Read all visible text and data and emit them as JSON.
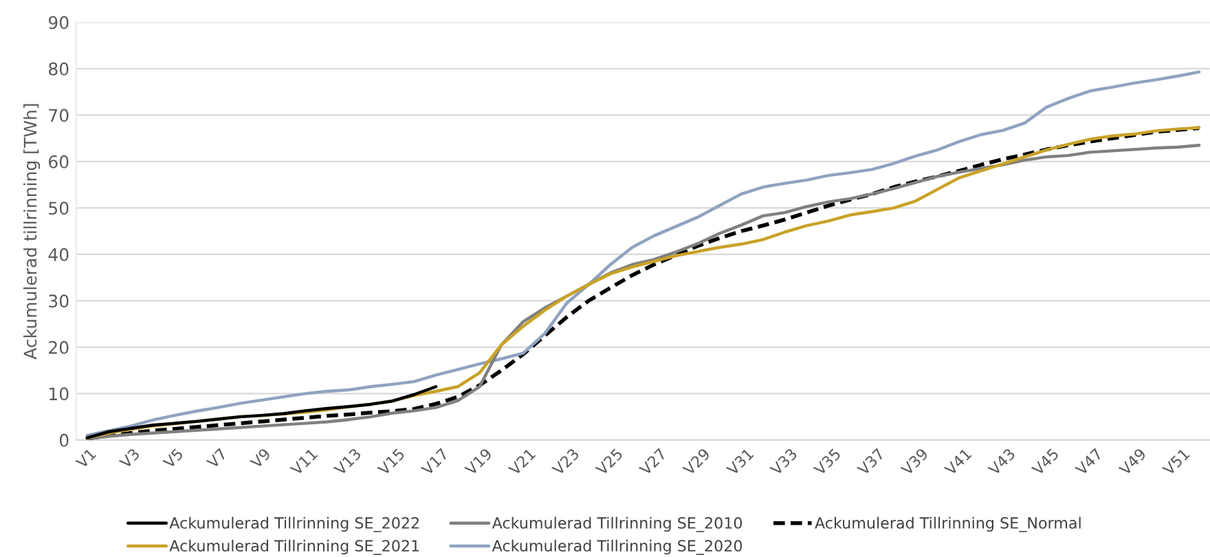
{
  "chart_data": {
    "type": "line",
    "ylabel": "Ackumulerad tillrinning [TWh]",
    "categories": [
      "V1",
      null,
      "V3",
      null,
      "V5",
      null,
      "V7",
      null,
      "V9",
      null,
      "V11",
      null,
      "V13",
      null,
      "V15",
      null,
      "V17",
      null,
      "V19",
      null,
      "V21",
      null,
      "V23",
      null,
      "V25",
      null,
      "V27",
      null,
      "V29",
      null,
      "V31",
      null,
      "V33",
      null,
      "V35",
      null,
      "V37",
      null,
      "V39",
      null,
      "V41",
      null,
      "V43",
      null,
      "V45",
      null,
      "V47",
      null,
      "V49",
      null,
      "V51",
      null
    ],
    "ylim": [
      0,
      90
    ],
    "yticks": [
      0,
      10,
      20,
      30,
      40,
      50,
      60,
      70,
      80,
      90
    ],
    "grid": "y",
    "legend": "bottom",
    "series": [
      {
        "name": "Ackumulerad Tillrinning SE_2022",
        "color": "#000000",
        "values": [
          0.5,
          1.8,
          2.5,
          3.2,
          3.6,
          4,
          4.5,
          5,
          5.3,
          5.7,
          6.3,
          6.8,
          7.2,
          7.7,
          8.4,
          9.8,
          11.5,
          null,
          null,
          null,
          null,
          null,
          null,
          null,
          null,
          null,
          null,
          null,
          null,
          null,
          null,
          null,
          null,
          null,
          null,
          null,
          null,
          null,
          null,
          null,
          null,
          null,
          null,
          null,
          null,
          null,
          null,
          null,
          null,
          null,
          null,
          null
        ]
      },
      {
        "name": "Ackumulerad Tillrinning SE_2021",
        "color": "#c9a227",
        "values": [
          0.5,
          1.5,
          2.3,
          3,
          3.5,
          4,
          4.5,
          5,
          5.3,
          5.6,
          6,
          6.5,
          7.2,
          7.7,
          8.4,
          9.6,
          10.5,
          11.5,
          14.5,
          20.5,
          24.5,
          28,
          31,
          33.5,
          35.8,
          37.3,
          38.5,
          39.7,
          40.6,
          41.5,
          42.2,
          43.2,
          44.8,
          46.2,
          47.2,
          48.5,
          49.2,
          50,
          51.5,
          54,
          56.5,
          58,
          59.5,
          61,
          62.5,
          63.7,
          64.8,
          65.5,
          65.9,
          66.6,
          67,
          67.3
        ]
      },
      {
        "name": "Ackumulerad Tillrinning SE_2010",
        "color": "#808080",
        "values": [
          0.3,
          0.8,
          1.2,
          1.5,
          1.8,
          2.1,
          2.4,
          2.7,
          3,
          3.3,
          3.6,
          3.9,
          4.4,
          5,
          5.8,
          6.3,
          7,
          8.5,
          11.5,
          20.5,
          25.5,
          28.5,
          31,
          33.5,
          36,
          37.8,
          38.9,
          40.5,
          42.3,
          44.5,
          46.3,
          48.3,
          49,
          50.3,
          51.3,
          52,
          53,
          54.2,
          55.5,
          56.8,
          57.7,
          58.5,
          59.3,
          60.3,
          61,
          61.3,
          62,
          62.3,
          62.6,
          62.9,
          63.1,
          63.5
        ]
      },
      {
        "name": "Ackumulerad Tillrinning SE_2020",
        "color": "#8fa3c0",
        "values": [
          1,
          2,
          3,
          4.3,
          5.3,
          6.2,
          7,
          7.9,
          8.6,
          9.3,
          10,
          10.5,
          10.8,
          11.5,
          12,
          12.6,
          14,
          15.2,
          16.4,
          17.5,
          18.7,
          23,
          29.5,
          33.5,
          37.8,
          41.5,
          44,
          46,
          48,
          50.5,
          53,
          54.5,
          55.3,
          56,
          57,
          57.6,
          58.3,
          59.6,
          61.2,
          62.5,
          64.3,
          65.8,
          66.7,
          68.3,
          71.7,
          73.6,
          75.2,
          76,
          76.9,
          77.6,
          78.4,
          79.3
        ]
      },
      {
        "name": "Ackumulerad Tillrinning SE_Normal",
        "color": "#000000",
        "line_style": "dashed",
        "values": [
          0.3,
          1,
          1.5,
          2,
          2.4,
          2.8,
          3.2,
          3.6,
          4,
          4.4,
          4.8,
          5.2,
          5.5,
          5.9,
          6.2,
          6.7,
          7.8,
          9.3,
          11.8,
          15,
          18.5,
          22.5,
          26.5,
          30,
          32.8,
          35.5,
          37.8,
          39.8,
          41.8,
          43.5,
          45,
          46.2,
          47.5,
          49,
          50.5,
          51.8,
          53,
          54.5,
          55.7,
          56.8,
          58,
          59.3,
          60.5,
          61.5,
          62.6,
          63.5,
          64.3,
          65,
          65.7,
          66.4,
          66.8,
          67.2
        ]
      }
    ]
  }
}
